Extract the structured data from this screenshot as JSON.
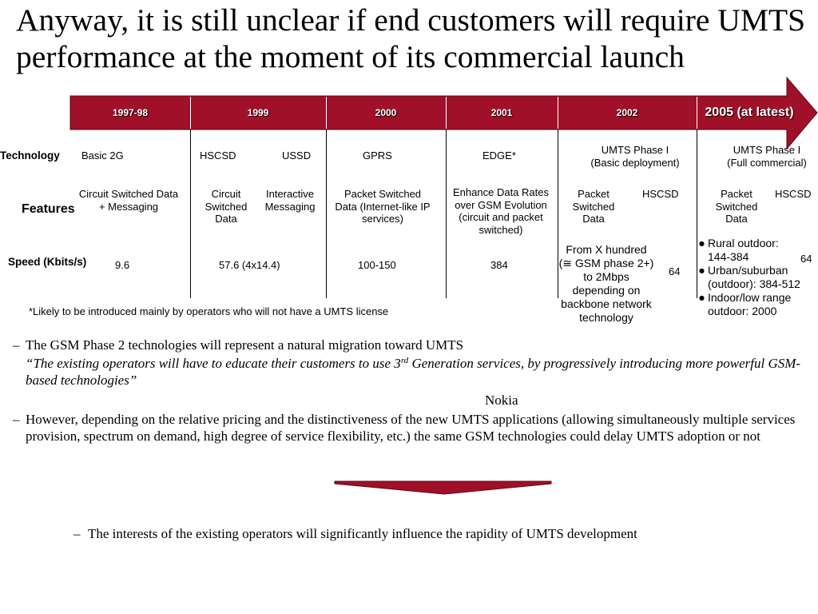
{
  "title": "Anyway, it is still unclear if end customers will require UMTS\nperformance at the moment of its commercial launch",
  "colors": {
    "accent": "#A01028"
  },
  "timeline": {
    "periods": [
      "1997-98",
      "1999",
      "2000",
      "2001",
      "2002",
      "2005 (at latest)"
    ]
  },
  "row_labels": {
    "technology": "Technology",
    "features": "Features",
    "speed": "Speed (Kbits/s)"
  },
  "technology": [
    "Basic 2G",
    "HSCSD",
    "USSD",
    "GPRS",
    "EDGE*",
    "UMTS Phase I\n(Basic deployment)",
    "UMTS Phase I\n(Full commercial)"
  ],
  "features": [
    "Circuit Switched Data\n+ Messaging",
    "Circuit\nSwitched\nData",
    "Interactive\nMessaging",
    "Packet Switched\nData (Internet-like IP\nservices)",
    "Enhance Data Rates\nover GSM Evolution\n(circuit and packet\nswitched)",
    "Packet\nSwitched\nData",
    "HSCSD",
    "Packet\nSwitched\nData",
    "HSCSD"
  ],
  "speed": {
    "values": [
      "9.6",
      "57.6 (4x14.4)",
      "100-150",
      "384"
    ],
    "umts_basic": "From X hundred\n(≅ GSM phase 2+)\nto 2Mbps\ndepending on\nbackbone network\ntechnology",
    "hscsd_2002": "64",
    "umts_full": {
      "bullet_marker": "●",
      "items": [
        "Rural outdoor:\n144-384",
        "Urban/suburban\n(outdoor): 384-512",
        "Indoor/low range\noutdoor: 2000"
      ]
    },
    "hscsd_2005": "64"
  },
  "footnote": "*Likely to be introduced mainly by operators who will not have a UMTS license",
  "body": {
    "dash": "–",
    "point1": "The GSM Phase 2 technologies will represent a natural migration toward UMTS",
    "quote": {
      "before": "“The existing operators will have to educate their customers to use 3",
      "superscript": "rd",
      "after": " Generation services, by progressively introducing more powerful GSM-based technologies”",
      "source": "Nokia"
    },
    "point2": "However, depending on the relative pricing and the distinctiveness of the new UMTS applications (allowing simultaneously multiple services provision, spectrum on demand, high degree of service flexibility, etc.)  the same GSM technologies could delay UMTS adoption or not",
    "conclusion": "The interests of the existing operators will significantly influence the rapidity of UMTS development"
  }
}
